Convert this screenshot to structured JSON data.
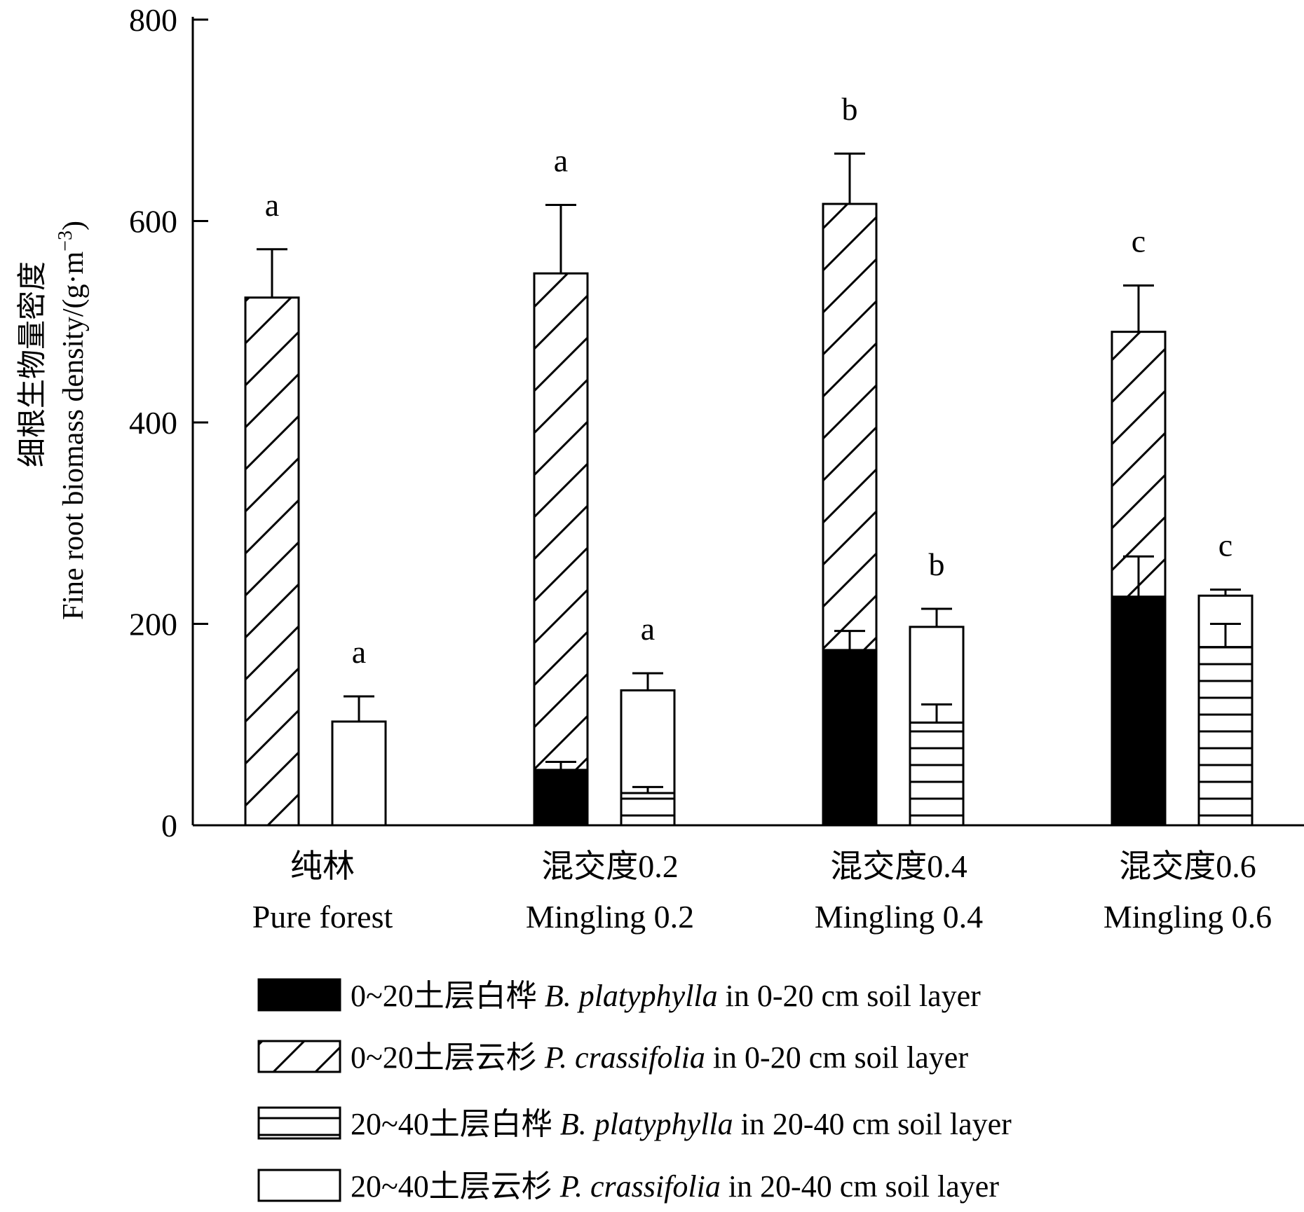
{
  "chart_data": {
    "type": "bar",
    "subtype": "stacked-grouped",
    "title": "",
    "ylabel_zh": "细根生物量密度",
    "ylabel_en": "Fine root biomass density/(g·m",
    "ylabel_sup": "−3",
    "ylabel_close": ")",
    "ylim": [
      0,
      800
    ],
    "yticks": [
      "0",
      "200",
      "400",
      "600",
      "800"
    ],
    "ytick_values": [
      0,
      200,
      400,
      600,
      800
    ],
    "categories": [
      {
        "zh": "纯林",
        "en": "Pure forest"
      },
      {
        "zh": "混交度0.2",
        "en": "Mingling 0.2"
      },
      {
        "zh": "混交度0.4",
        "en": "Mingling 0.4"
      },
      {
        "zh": "混交度0.6",
        "en": "Mingling 0.6"
      }
    ],
    "layers": [
      {
        "name": "0-20 cm",
        "significance": [
          "a",
          "a",
          "b",
          "c"
        ],
        "series": [
          {
            "legend": "B. platyphylla in 0-20 cm",
            "pattern": "solid",
            "values": [
              0,
              55,
              174,
              227
            ],
            "errors": [
              0,
              8,
              19,
              40
            ]
          },
          {
            "legend": "P. crassifolia in 0-20 cm",
            "pattern": "diagonal",
            "values": [
              524,
              493,
              443,
              263
            ],
            "errors": [
              48,
              68,
              50,
              46
            ]
          }
        ],
        "totals": [
          524,
          548,
          617,
          490
        ]
      },
      {
        "name": "20-40 cm",
        "significance": [
          "a",
          "a",
          "b",
          "c"
        ],
        "series": [
          {
            "legend": "B. platyphylla in 20-40 cm",
            "pattern": "horizontal",
            "values": [
              0,
              32,
              102,
              177
            ],
            "errors": [
              0,
              6,
              18,
              23
            ]
          },
          {
            "legend": "P. crassifolia in 20-40 cm",
            "pattern": "open",
            "values": [
              103,
              102,
              95,
              51
            ],
            "errors": [
              25,
              17,
              18,
              6
            ]
          }
        ],
        "totals": [
          103,
          134,
          197,
          228
        ]
      }
    ],
    "legend": {
      "placement": "bottom",
      "entries": [
        {
          "pattern": "solid",
          "zh": "0~20土层白桦",
          "species": "B. platyphylla",
          "rest": " in 0-20 cm soil layer"
        },
        {
          "pattern": "diagonal",
          "zh": "0~20土层云杉",
          "species": "P. crassifolia",
          "rest": " in 0-20 cm soil layer"
        },
        {
          "pattern": "horizontal",
          "zh": "20~40土层白桦",
          "species": "B. platyphylla",
          "rest": " in 20-40 cm soil layer"
        },
        {
          "pattern": "open",
          "zh": "20~40土层云杉",
          "species": "P. crassifolia",
          "rest": " in 20-40 cm soil layer"
        }
      ]
    },
    "grid": false,
    "colors": {
      "solid": "#000000",
      "outline": "#000000",
      "background": "#ffffff"
    }
  }
}
